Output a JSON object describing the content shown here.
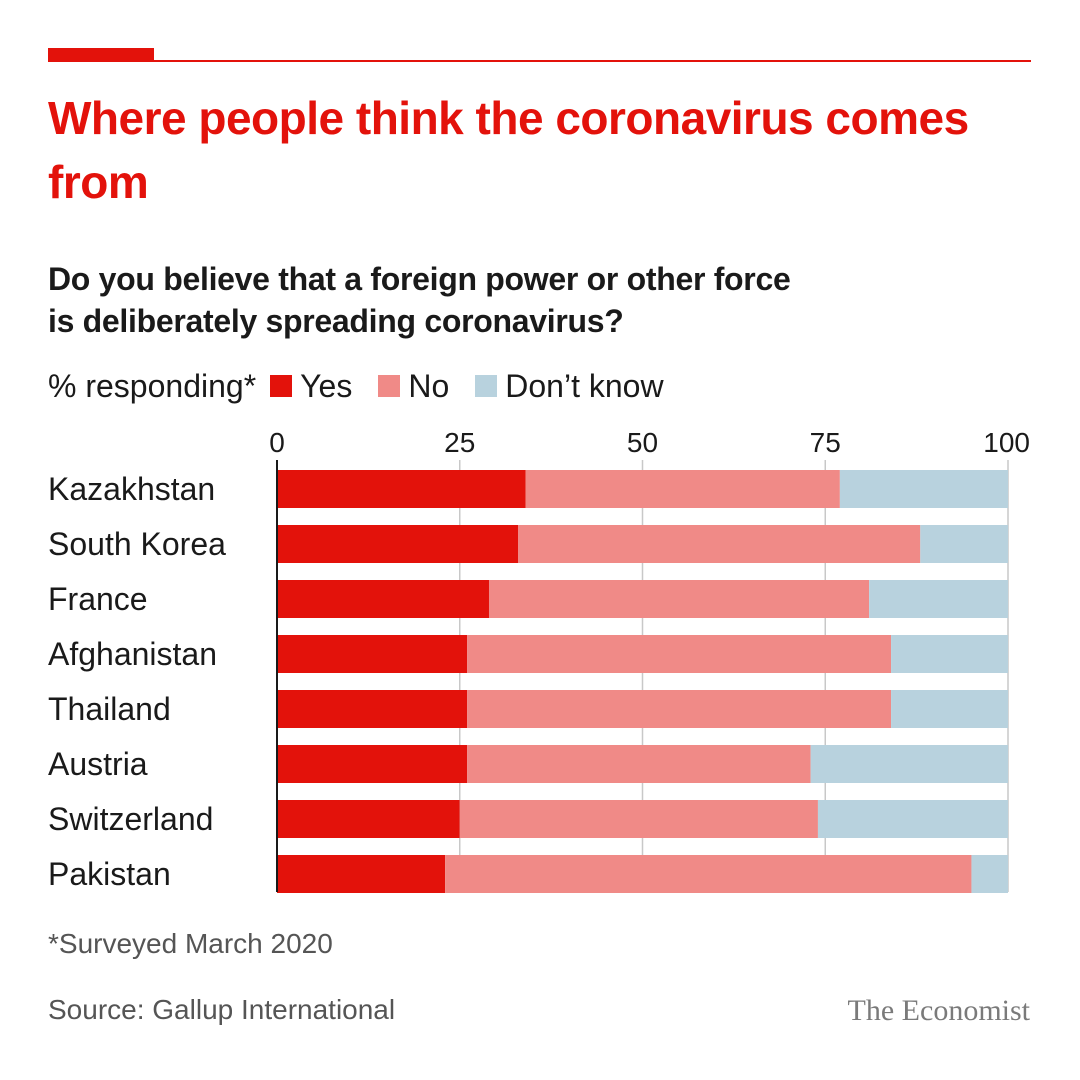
{
  "title": "Where people think the coronavirus comes from",
  "subtitle": "Do you believe that a foreign power or other force is deliberately spreading coronavirus?",
  "legend": {
    "label": "% responding*",
    "items": [
      {
        "name": "Yes",
        "color": "#e3120b"
      },
      {
        "name": "No",
        "color": "#f08a87"
      },
      {
        "name": "Don’t know",
        "color": "#b8d2de"
      }
    ]
  },
  "chart_data": {
    "type": "bar",
    "orientation": "horizontal",
    "stacked": true,
    "categories": [
      "Kazakhstan",
      "South Korea",
      "France",
      "Afghanistan",
      "Thailand",
      "Austria",
      "Switzerland",
      "Pakistan"
    ],
    "series": [
      {
        "name": "Yes",
        "color": "#e3120b",
        "values": [
          34,
          33,
          29,
          26,
          26,
          26,
          25,
          23
        ]
      },
      {
        "name": "No",
        "color": "#f08a87",
        "values": [
          43,
          55,
          52,
          58,
          58,
          47,
          49,
          72
        ]
      },
      {
        "name": "Don’t know",
        "color": "#b8d2de",
        "values": [
          23,
          12,
          19,
          16,
          16,
          27,
          26,
          5
        ]
      }
    ],
    "xlim": [
      0,
      100
    ],
    "xticks": [
      0,
      25,
      50,
      75,
      100
    ],
    "grid": true,
    "legend_position": "top-left"
  },
  "footnote": "*Surveyed March 2020",
  "source": "Source: Gallup International",
  "brand": "The Economist"
}
